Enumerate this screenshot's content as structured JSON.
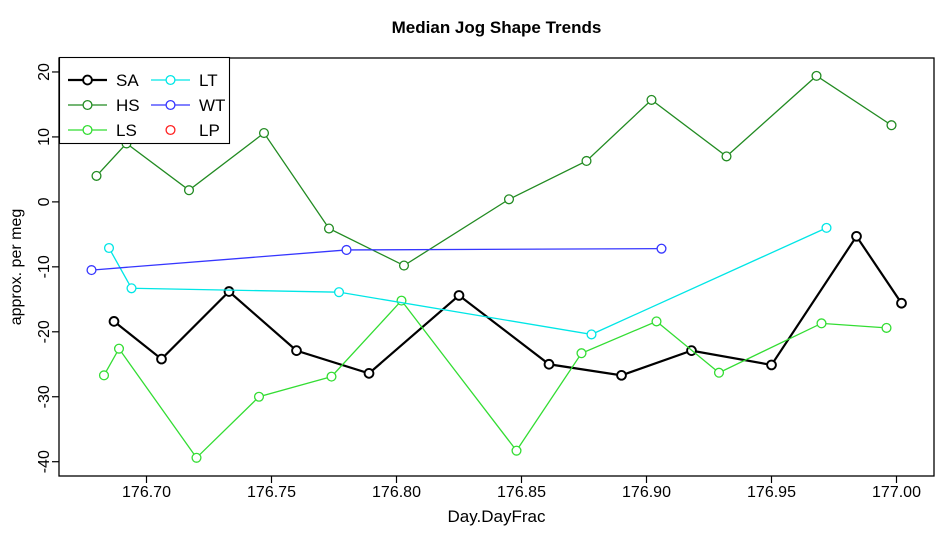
{
  "chart_data": {
    "type": "line",
    "title": "Median Jog Shape Trends",
    "xlabel": "Day.DayFrac",
    "ylabel": "approx. per meg",
    "xlim": [
      176.665,
      177.015
    ],
    "ylim": [
      -42.2,
      22.15
    ],
    "x_ticks": [
      176.7,
      176.75,
      176.8,
      176.85,
      176.9,
      176.95,
      177.0
    ],
    "x_tick_labels": [
      "176.70",
      "176.75",
      "176.80",
      "176.85",
      "176.90",
      "176.95",
      "177.00"
    ],
    "y_ticks": [
      -40,
      -30,
      -20,
      -10,
      0,
      10,
      20
    ],
    "y_tick_labels": [
      "-40",
      "-30",
      "-20",
      "-10",
      "0",
      "10",
      "20"
    ],
    "grid": false,
    "marker": "open-circle",
    "legend": {
      "position": "top-left",
      "columns": 2,
      "order": [
        "SA",
        "HS",
        "LS",
        "LT",
        "WT",
        "LP"
      ]
    },
    "series": [
      {
        "name": "SA",
        "color": "#000000",
        "line_width": 2.2,
        "legend_line": true,
        "points": [
          [
            176.687,
            -18.4
          ],
          [
            176.706,
            -24.2
          ],
          [
            176.733,
            -13.8
          ],
          [
            176.76,
            -22.9
          ],
          [
            176.789,
            -26.4
          ],
          [
            176.825,
            -14.4
          ],
          [
            176.861,
            -25.0
          ],
          [
            176.89,
            -26.7
          ],
          [
            176.918,
            -22.9
          ],
          [
            176.95,
            -25.1
          ],
          [
            176.984,
            -5.3
          ],
          [
            177.002,
            -15.6
          ]
        ]
      },
      {
        "name": "HS",
        "color": "#228B22",
        "line_width": 1.3,
        "legend_line": true,
        "points": [
          [
            176.68,
            4.0
          ],
          [
            176.692,
            9.0
          ],
          [
            176.717,
            1.8
          ],
          [
            176.747,
            10.6
          ],
          [
            176.773,
            -4.1
          ],
          [
            176.803,
            -9.8
          ],
          [
            176.845,
            0.4
          ],
          [
            176.876,
            6.3
          ],
          [
            176.902,
            15.7
          ],
          [
            176.932,
            7.0
          ],
          [
            176.968,
            19.4
          ],
          [
            176.998,
            11.8
          ]
        ]
      },
      {
        "name": "LS",
        "color": "#33DD33",
        "line_width": 1.3,
        "legend_line": true,
        "points": [
          [
            176.683,
            -26.7
          ],
          [
            176.689,
            -22.6
          ],
          [
            176.72,
            -39.4
          ],
          [
            176.745,
            -30.0
          ],
          [
            176.774,
            -26.9
          ],
          [
            176.802,
            -15.2
          ],
          [
            176.848,
            -38.3
          ],
          [
            176.874,
            -23.3
          ],
          [
            176.904,
            -18.4
          ],
          [
            176.929,
            -26.3
          ],
          [
            176.97,
            -18.7
          ],
          [
            176.996,
            -19.4
          ]
        ]
      },
      {
        "name": "LT",
        "color": "#00E6E6",
        "line_width": 1.3,
        "legend_line": true,
        "points": [
          [
            176.685,
            -7.1
          ],
          [
            176.694,
            -13.3
          ],
          [
            176.777,
            -13.9
          ],
          [
            176.878,
            -20.4
          ],
          [
            176.972,
            -4.0
          ]
        ]
      },
      {
        "name": "WT",
        "color": "#3636FF",
        "line_width": 1.3,
        "legend_line": true,
        "points": [
          [
            176.678,
            -10.5
          ],
          [
            176.78,
            -7.4
          ],
          [
            176.906,
            -7.2
          ]
        ]
      },
      {
        "name": "LP",
        "color": "#FF2222",
        "line_width": 1.3,
        "legend_line": false,
        "points": []
      }
    ]
  }
}
